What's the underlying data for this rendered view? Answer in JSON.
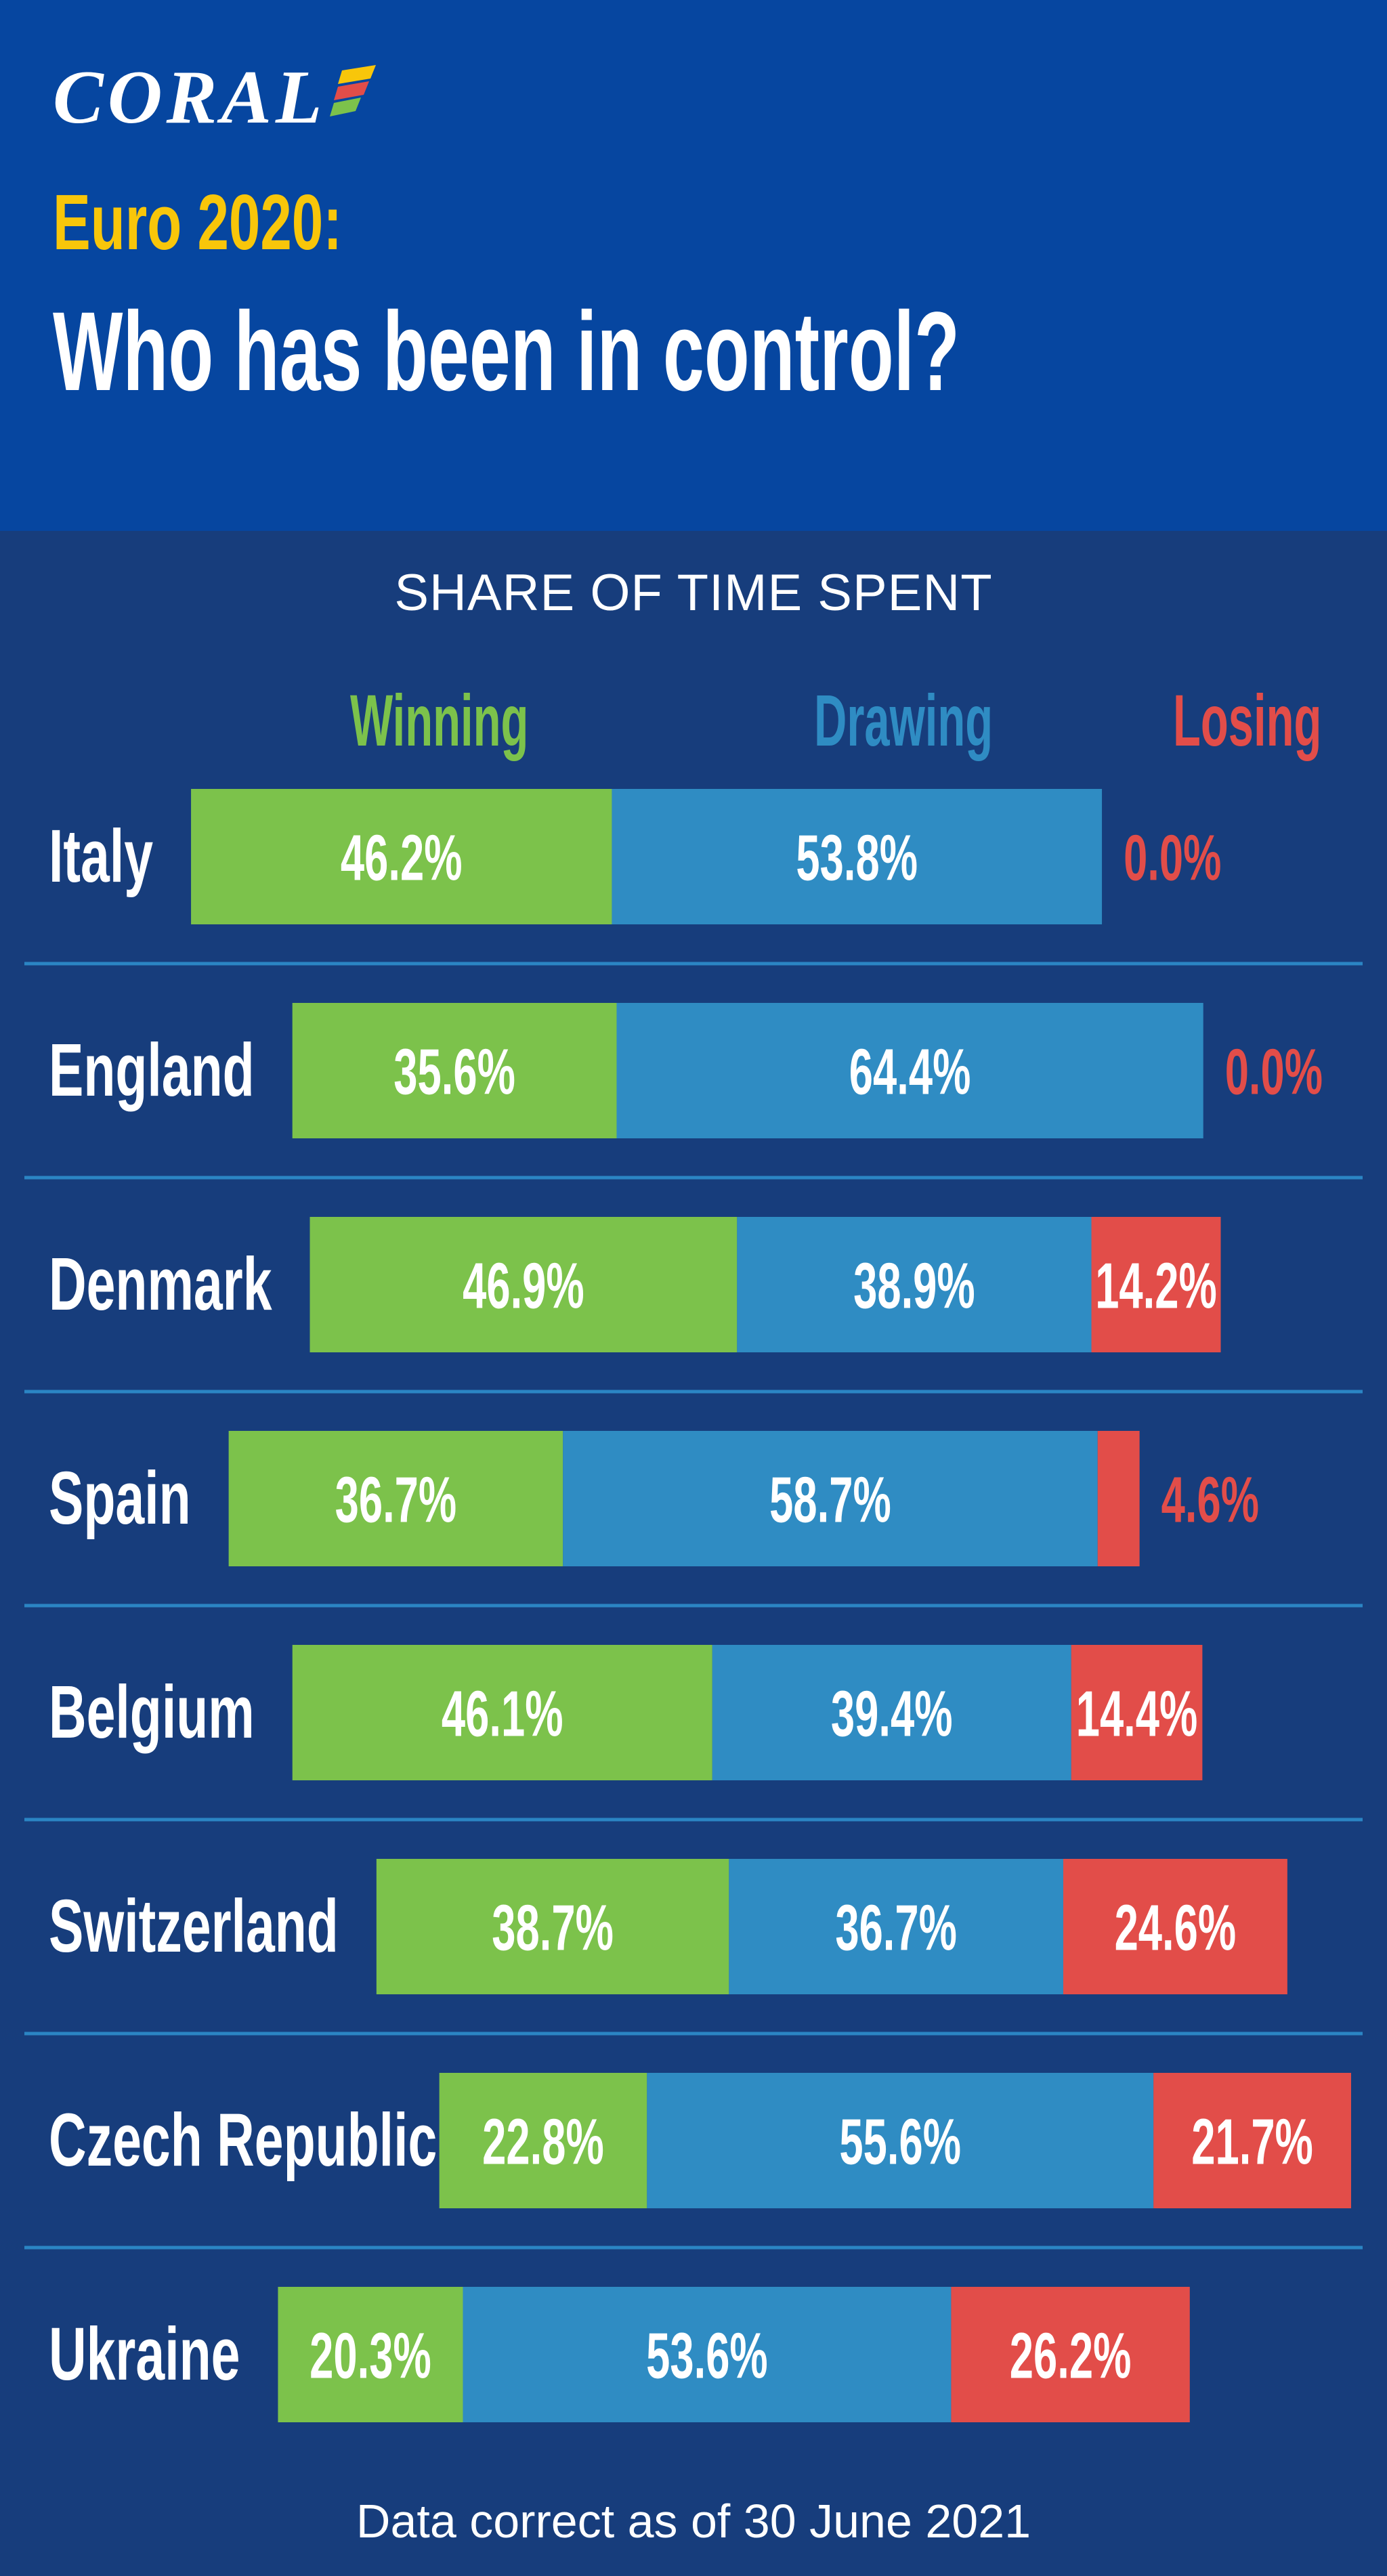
{
  "brand": {
    "logo_text": "CORAL"
  },
  "title_line1": "Euro 2020:",
  "title_line2": "Who has been in control?",
  "subtitle": "SHARE OF TIME SPENT",
  "footnote": "Data correct as of 30 June 2021",
  "colors": {
    "header_bg": "#0646a0",
    "page_bg": "#173d7c",
    "title_accent": "#f8c60a",
    "winning": "#7cc24b",
    "drawing": "#2f8cc3",
    "losing": "#e24d49",
    "divider": "#2b85c4"
  },
  "chart_data": {
    "type": "bar",
    "orientation": "horizontal",
    "stacked": true,
    "title": "",
    "xlabel": "",
    "ylabel": "",
    "categories": [
      "Italy",
      "England",
      "Denmark",
      "Spain",
      "Belgium",
      "Switzerland",
      "Czech Republic",
      "Ukraine"
    ],
    "series": [
      {
        "name": "Winning",
        "values": [
          46.2,
          35.6,
          46.9,
          36.7,
          46.1,
          38.7,
          22.8,
          20.3
        ],
        "labels": [
          "46.2%",
          "35.6%",
          "46.9%",
          "36.7%",
          "46.1%",
          "38.7%",
          "22.8%",
          "20.3%"
        ]
      },
      {
        "name": "Drawing",
        "values": [
          53.8,
          64.4,
          38.9,
          58.7,
          39.4,
          36.7,
          55.6,
          53.6
        ],
        "labels": [
          "53.8%",
          "64.4%",
          "38.9%",
          "58.7%",
          "39.4%",
          "36.7%",
          "55.6%",
          "53.6%"
        ]
      },
      {
        "name": "Losing",
        "values": [
          0.0,
          0.0,
          14.2,
          4.6,
          14.4,
          24.6,
          21.7,
          26.2
        ],
        "labels": [
          "0.0%",
          "0.0%",
          "14.2%",
          "4.6%",
          "14.4%",
          "24.6%",
          "21.7%",
          "26.2%"
        ]
      }
    ],
    "xlim": [
      0,
      100
    ],
    "unit": "%",
    "legend": "top",
    "grid": false
  }
}
